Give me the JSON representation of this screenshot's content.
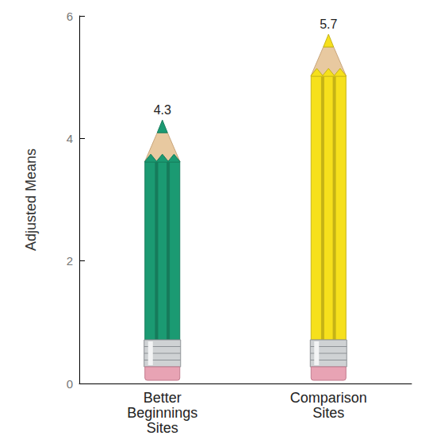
{
  "chart_data": {
    "type": "bar",
    "y_label": "Adjusted Means",
    "categories": [
      "Better Beginnings Sites",
      "Comparison Sites"
    ],
    "values": [
      4.3,
      5.7
    ],
    "colors": [
      "#1b9a72",
      "#f6e01c"
    ],
    "ylim": [
      0,
      6
    ],
    "yticks": [
      0,
      2,
      4,
      6
    ],
    "grid": false,
    "data_labels": true
  }
}
